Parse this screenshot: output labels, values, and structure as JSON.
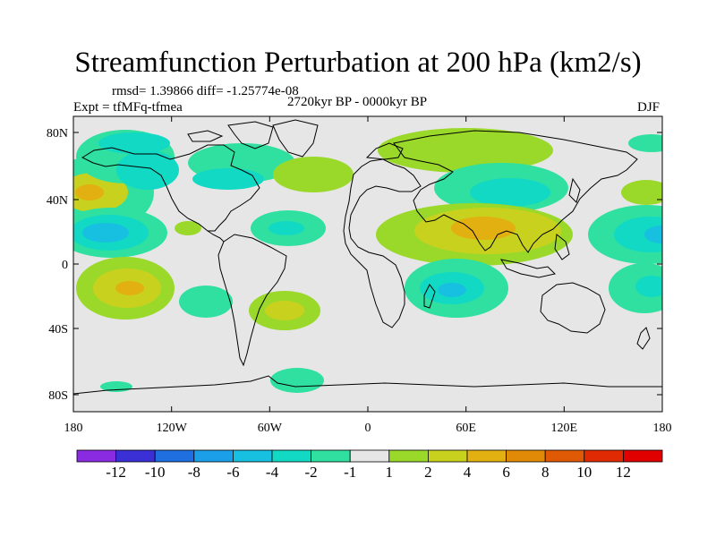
{
  "title": "Streamfunction Perturbation at 200 hPa (km2/s)",
  "stats_line": "rmsd= 1.39866 diff= -1.25774e-08",
  "experiment": "Expt = tfMFq-tfmea",
  "period": "2720kyr BP - 0000kyr BP",
  "season": "DJF",
  "lat_ticks": [
    "80N",
    "40N",
    "0",
    "40S",
    "80S"
  ],
  "lon_ticks": [
    "180",
    "120W",
    "60W",
    "0",
    "60E",
    "120E",
    "180"
  ],
  "colorbar": {
    "labels": [
      "-12",
      "-10",
      "-8",
      "-6",
      "-4",
      "-2",
      "-1",
      "1",
      "2",
      "4",
      "6",
      "8",
      "10",
      "12"
    ],
    "colors": [
      "#8a2be2",
      "#3b2fd6",
      "#1f6fe0",
      "#1a9fe8",
      "#17bfe0",
      "#12d9c4",
      "#2fe0a0",
      "#e6e6e6",
      "#9ad82a",
      "#c8d21e",
      "#e2b010",
      "#e08a08",
      "#e05a06",
      "#e02a04",
      "#e00000"
    ]
  }
}
